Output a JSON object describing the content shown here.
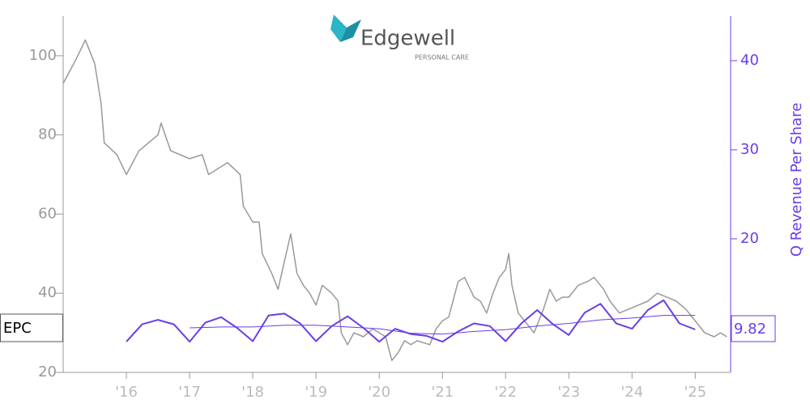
{
  "chart_data": {
    "type": "line",
    "logo": {
      "name": "Edgewell",
      "tagline": "PERSONAL CARE"
    },
    "y2_label": "Q Revenue Per Share",
    "xlim": [
      2015.0,
      2025.56
    ],
    "xticks": [
      {
        "value": 2016,
        "label": "'16"
      },
      {
        "value": 2017,
        "label": "'17"
      },
      {
        "value": 2018,
        "label": "'18"
      },
      {
        "value": 2019,
        "label": "'19"
      },
      {
        "value": 2020,
        "label": "'20"
      },
      {
        "value": 2021,
        "label": "'21"
      },
      {
        "value": 2022,
        "label": "'22"
      },
      {
        "value": 2023,
        "label": "'23"
      },
      {
        "value": 2024,
        "label": "'24"
      },
      {
        "value": 2025,
        "label": "'25"
      }
    ],
    "ylim": [
      20,
      110
    ],
    "yticks": [
      20,
      40,
      60,
      80,
      100
    ],
    "y2lim": [
      5,
      45
    ],
    "y2ticks": [
      20,
      30,
      40
    ],
    "series": [
      {
        "label": "EPC",
        "color": "#999999",
        "width": 1.5,
        "x": [
          2015.0,
          2015.1,
          2015.2,
          2015.35,
          2015.5,
          2015.6,
          2015.65,
          2015.85,
          2016.0,
          2016.2,
          2016.5,
          2016.55,
          2016.7,
          2017.0,
          2017.2,
          2017.3,
          2017.5,
          2017.6,
          2017.8,
          2017.85,
          2018.0,
          2018.1,
          2018.15,
          2018.3,
          2018.4,
          2018.5,
          2018.6,
          2018.7,
          2018.8,
          2018.9,
          2019.0,
          2019.1,
          2019.25,
          2019.35,
          2019.4,
          2019.5,
          2019.6,
          2019.75,
          2019.9,
          2020.0,
          2020.1,
          2020.2,
          2020.3,
          2020.4,
          2020.5,
          2020.6,
          2020.8,
          2020.9,
          2021.0,
          2021.1,
          2021.25,
          2021.35,
          2021.5,
          2021.6,
          2021.7,
          2021.8,
          2021.9,
          2022.0,
          2022.05,
          2022.1,
          2022.2,
          2022.3,
          2022.45,
          2022.6,
          2022.7,
          2022.8,
          2022.9,
          2023.0,
          2023.15,
          2023.3,
          2023.4,
          2023.55,
          2023.65,
          2023.8,
          2023.95,
          2024.1,
          2024.25,
          2024.4,
          2024.55,
          2024.7,
          2024.85,
          2025.0,
          2025.15,
          2025.3,
          2025.4,
          2025.5
        ],
        "values": [
          93,
          96,
          99,
          104,
          98,
          88,
          78,
          75,
          70,
          76,
          80,
          83,
          76,
          74,
          75,
          70,
          72,
          73,
          70,
          62,
          58,
          58,
          50,
          45,
          41,
          48,
          55,
          45,
          42,
          40,
          37,
          42,
          40,
          38,
          30,
          27,
          30,
          29,
          31,
          30,
          29,
          23,
          25,
          28,
          27,
          28,
          27,
          31,
          33,
          34,
          43,
          44,
          39,
          38,
          35,
          40,
          44,
          46,
          50,
          42,
          35,
          33,
          30,
          36,
          41,
          38,
          39,
          39,
          42,
          43,
          44,
          41,
          38,
          35,
          36,
          37,
          38,
          40,
          39,
          38,
          36,
          33,
          30,
          29,
          30,
          29
        ]
      },
      {
        "axis": "y2",
        "color": "#6b3de8",
        "width": 2,
        "x": [
          2016.0,
          2016.25,
          2016.5,
          2016.75,
          2017.0,
          2017.25,
          2017.5,
          2017.75,
          2018.0,
          2018.25,
          2018.5,
          2018.75,
          2019.0,
          2019.25,
          2019.5,
          2019.75,
          2020.0,
          2020.25,
          2020.5,
          2020.75,
          2021.0,
          2021.25,
          2021.5,
          2021.75,
          2022.0,
          2022.25,
          2022.5,
          2022.75,
          2023.0,
          2023.25,
          2023.5,
          2023.75,
          2024.0,
          2024.25,
          2024.5,
          2024.75,
          2025.0
        ],
        "values": [
          8.45,
          10.4,
          10.9,
          10.4,
          8.45,
          10.6,
          11.2,
          10.0,
          8.5,
          11.4,
          11.6,
          10.5,
          8.5,
          10.2,
          11.3,
          10.0,
          8.45,
          9.9,
          9.3,
          9.1,
          8.45,
          9.6,
          10.5,
          10.2,
          8.5,
          10.5,
          12.0,
          10.4,
          9.2,
          11.7,
          12.7,
          10.5,
          9.9,
          12.0,
          13.1,
          10.5,
          9.82
        ]
      },
      {
        "axis": "y2",
        "color": "#6b3de8",
        "width": 1,
        "x": [
          2017.0,
          2017.5,
          2018.0,
          2018.5,
          2019.0,
          2019.5,
          2020.0,
          2020.5,
          2021.0,
          2021.5,
          2022.0,
          2022.5,
          2023.0,
          2023.5,
          2024.0,
          2024.5,
          2025.0
        ],
        "values": [
          10.0,
          10.1,
          10.1,
          10.3,
          10.3,
          10.1,
          9.9,
          9.4,
          9.3,
          9.6,
          9.8,
          10.2,
          10.5,
          10.9,
          11.1,
          11.4,
          11.4
        ]
      }
    ]
  }
}
